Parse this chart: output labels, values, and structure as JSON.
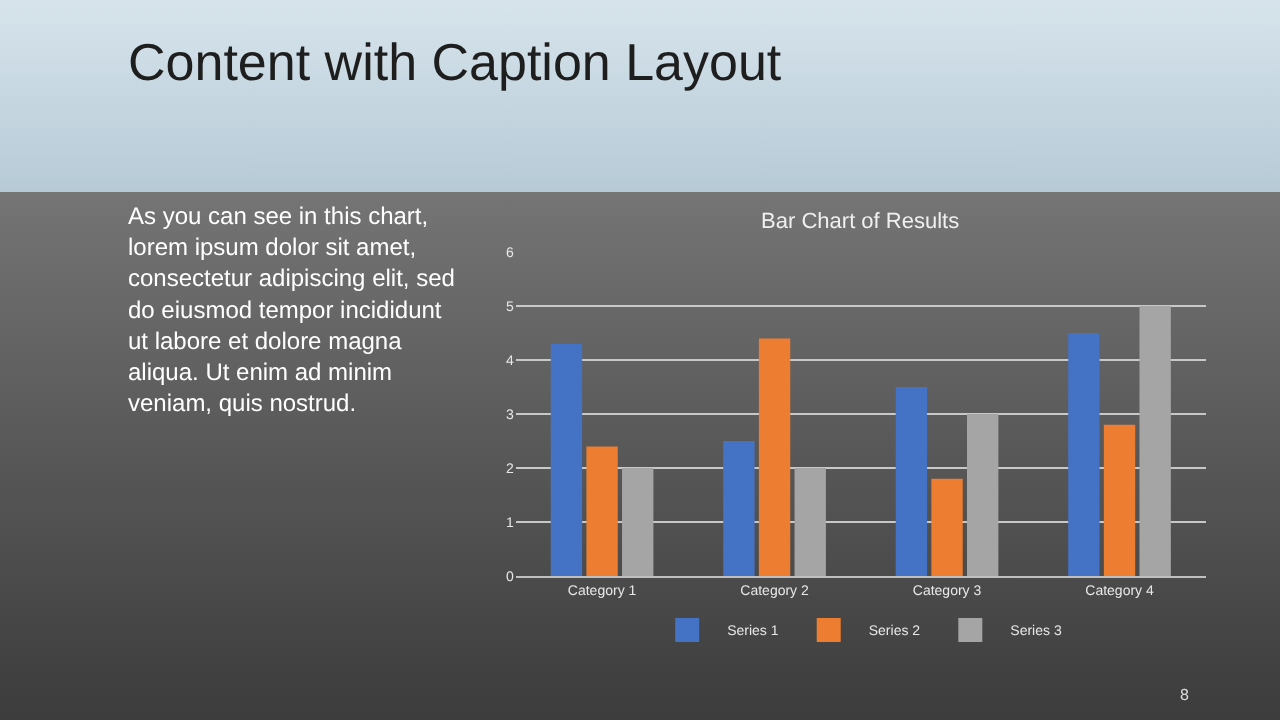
{
  "chart_data": {
    "type": "bar",
    "title": "Bar Chart of Results",
    "categories": [
      "Category 1",
      "Category 2",
      "Category 3",
      "Category 4"
    ],
    "series": [
      {
        "name": "Series 1",
        "color": "#4472c4",
        "values": [
          4.3,
          2.5,
          3.5,
          4.5
        ]
      },
      {
        "name": "Series 2",
        "color": "#ed7d31",
        "values": [
          2.4,
          4.4,
          1.8,
          2.8
        ]
      },
      {
        "name": "Series 3",
        "color": "#a5a5a5",
        "values": [
          2,
          2,
          3,
          5
        ]
      }
    ],
    "ylim": [
      0,
      6
    ],
    "yticks": [
      0,
      1,
      2,
      3,
      4,
      5,
      6
    ],
    "grid": "y",
    "legend": "bottom",
    "annotations": [
      "Content with Caption Layout",
      "As you can see in this chart,\nlorem ipsum dolor sit amet,\nconsectetur adipiscing elit, sed\ndo eiusmod tempor incididunt\nut labore et dolore magna\naliqua. Ut enim ad minim\nveniam, quis nostrud.",
      "8"
    ]
  }
}
